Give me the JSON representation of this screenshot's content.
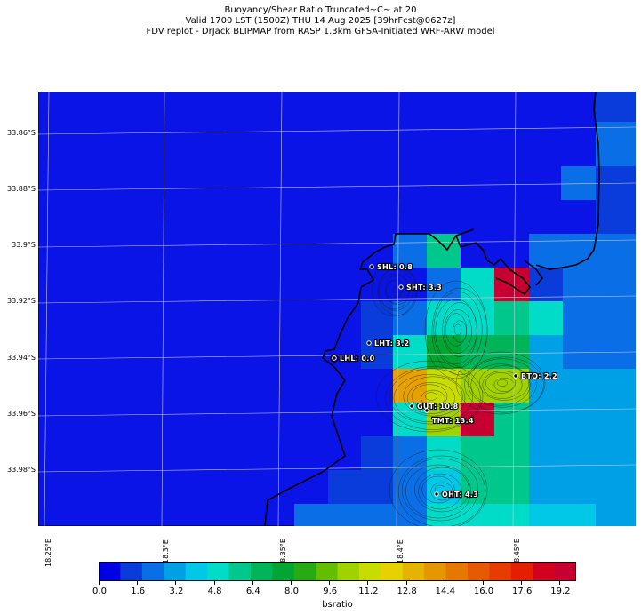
{
  "title": {
    "line1": "Buoyancy/Shear Ratio Truncated~C~    at 20",
    "line2": "Valid 1700 LST (1500Z) THU 14 Aug 2025 [39hrFcst@0627z]",
    "line3": "FDV replot - DrJack BLIPMAP from RASP 1.3km GFSA-Initiated WRF-ARW model"
  },
  "map": {
    "lat_labels": [
      "33.86°S",
      "33.88°S",
      "33.9°S",
      "33.92°S",
      "33.94°S",
      "33.96°S",
      "33.98°S"
    ],
    "lon_labels": [
      "18.25°E",
      "18.3°E",
      "18.35°E",
      "18.4°E",
      "18.45°E"
    ],
    "colors": {
      "ocean": "#0a14e6",
      "coast": "#000000",
      "grid": "#c8c8dc"
    },
    "stations": [
      {
        "code": "SHL",
        "value": "0.8",
        "text": "SHL: 0.8"
      },
      {
        "code": "SHT",
        "value": "3.3",
        "text": "SHT: 3.3"
      },
      {
        "code": "LHT",
        "value": "3.2",
        "text": "LHT: 3.2"
      },
      {
        "code": "LHL",
        "value": "0.0",
        "text": "LHL: 0.0"
      },
      {
        "code": "BTO",
        "value": "2.2",
        "text": "BTO: 2.2"
      },
      {
        "code": "GUT",
        "value": "10.8",
        "text": "GUT: 10.8"
      },
      {
        "code": "TMT",
        "value": "13.4",
        "text": "TMT: 13.4"
      },
      {
        "code": "OHT",
        "value": "4.3",
        "text": "OHT: 4.3"
      }
    ]
  },
  "colorbar": {
    "label": "bsratio",
    "ticks": [
      "0.0",
      "1.6",
      "3.2",
      "4.8",
      "6.4",
      "8.0",
      "9.6",
      "11.2",
      "12.8",
      "14.4",
      "16.0",
      "17.6",
      "19.2"
    ],
    "colors": [
      "#0000e6",
      "#0a3cdc",
      "#0a6ee6",
      "#00a0e6",
      "#00c8e6",
      "#00dcc8",
      "#00c88c",
      "#00b45a",
      "#00a532",
      "#28aa14",
      "#64be00",
      "#a0d200",
      "#c8dc00",
      "#e6d200",
      "#e6b400",
      "#e69600",
      "#e67800",
      "#e65a00",
      "#e63c00",
      "#e61e00",
      "#d2001e",
      "#c80032"
    ]
  }
}
